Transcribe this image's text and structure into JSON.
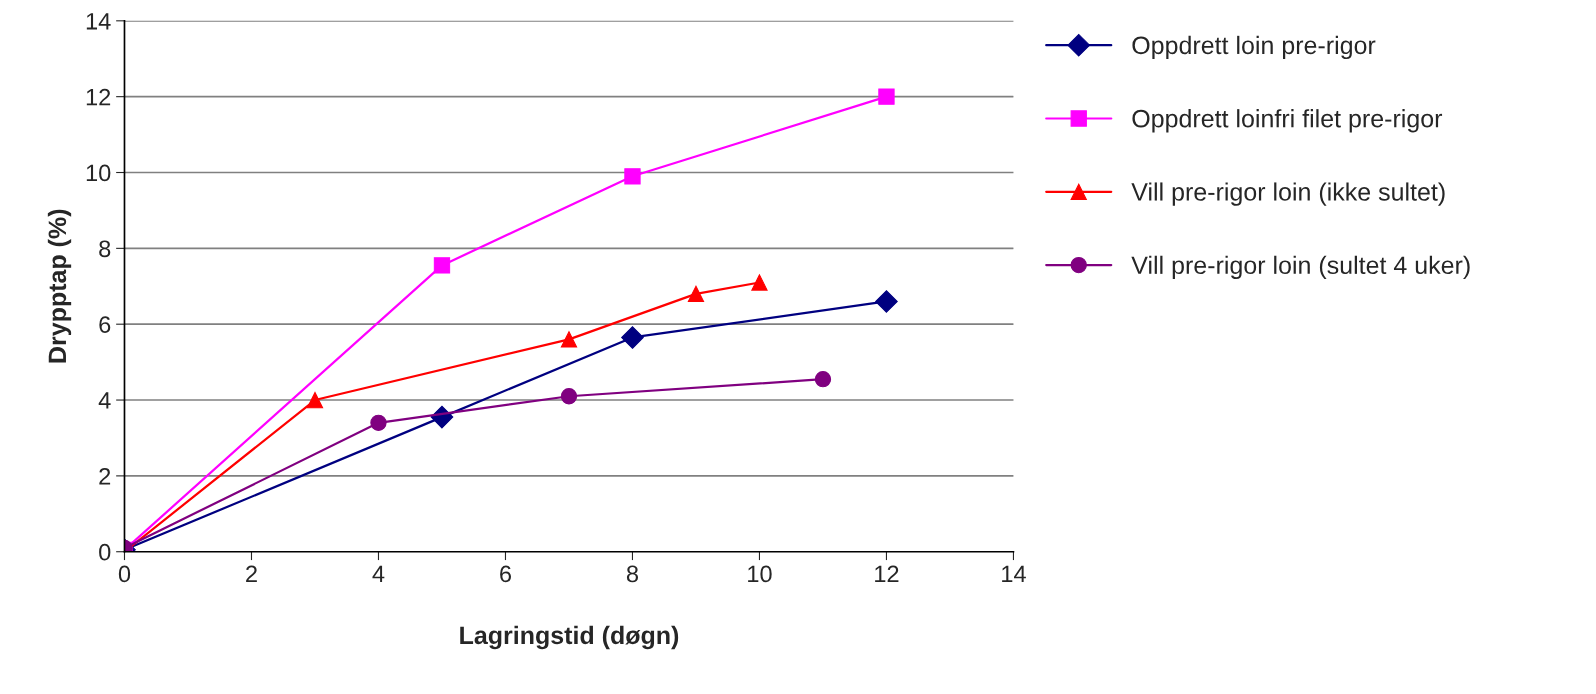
{
  "chart_data": {
    "type": "line",
    "xlabel": "Lagringstid (døgn)",
    "ylabel": "Drypptap (%)",
    "xlim": [
      0,
      14
    ],
    "xticks": [
      0,
      2,
      4,
      6,
      8,
      10,
      12,
      14
    ],
    "ylim": [
      0,
      14
    ],
    "yticks": [
      0,
      2,
      4,
      6,
      8,
      10,
      12,
      14
    ],
    "grid": "y",
    "legend": "right",
    "series": [
      {
        "name": "Oppdrett loin pre-rigor",
        "color": "#000080",
        "marker": "diamond",
        "x": [
          0,
          5,
          8,
          12
        ],
        "values": [
          0.05,
          3.55,
          5.65,
          6.6
        ]
      },
      {
        "name": "Oppdrett loinfri filet pre-rigor",
        "color": "#ff00ff",
        "marker": "square",
        "x": [
          0,
          5,
          8,
          12
        ],
        "values": [
          0.05,
          7.55,
          9.9,
          12.0
        ]
      },
      {
        "name": "Vill pre-rigor loin (ikke sultet)",
        "color": "#ff0000",
        "marker": "triangle",
        "x": [
          0,
          3,
          7,
          9,
          10
        ],
        "values": [
          0,
          4.0,
          5.6,
          6.8,
          7.1
        ]
      },
      {
        "name": "Vill pre-rigor loin (sultet 4 uker)",
        "color": "#800080",
        "marker": "circle",
        "x": [
          0,
          4,
          7,
          11
        ],
        "values": [
          0.1,
          3.4,
          4.1,
          4.55
        ]
      }
    ]
  }
}
